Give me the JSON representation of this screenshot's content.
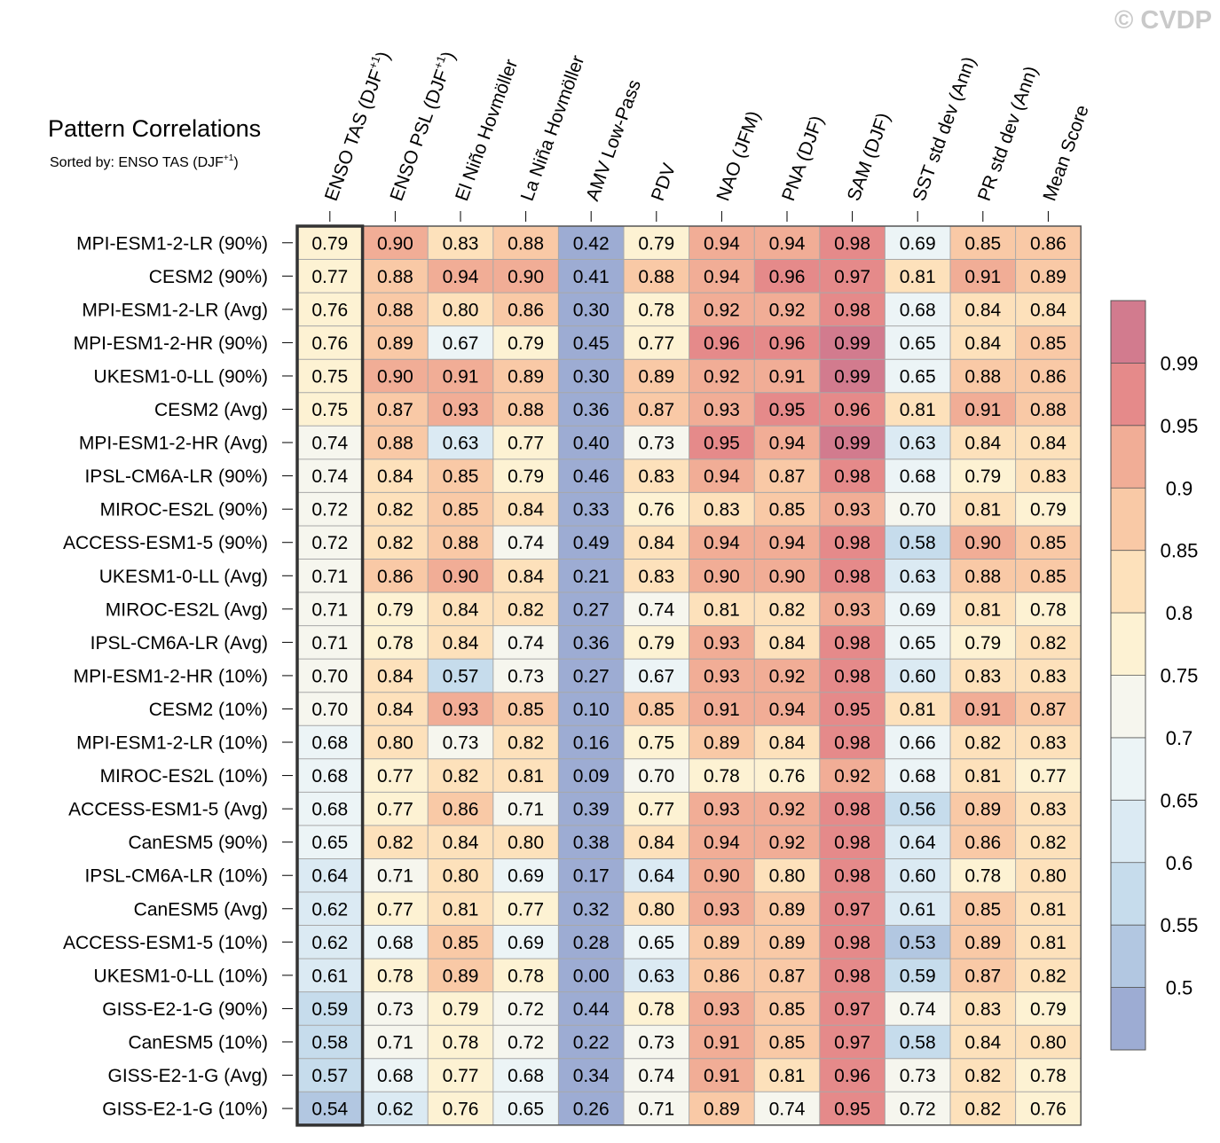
{
  "watermark": "© CVDP",
  "chart_data": {
    "type": "heatmap",
    "title": "Pattern Correlations",
    "subtitle": {
      "prefix": "Sorted by: ENSO TAS (DJF",
      "sup": "+1",
      "suffix": ")"
    },
    "columns": [
      {
        "label": "ENSO TAS (DJF",
        "sup": "+1",
        "suffix": ")"
      },
      {
        "label": "ENSO PSL (DJF",
        "sup": "+1",
        "suffix": ")"
      },
      {
        "label": "El Niño Hovmöller"
      },
      {
        "label": "La Niña Hovmöller"
      },
      {
        "label": "AMV Low-Pass"
      },
      {
        "label": "PDV"
      },
      {
        "label": "NAO (JFM)"
      },
      {
        "label": "PNA (DJF)"
      },
      {
        "label": "SAM (DJF)"
      },
      {
        "label": "SST std dev (Ann)"
      },
      {
        "label": "PR std dev (Ann)"
      },
      {
        "label": "Mean Score"
      }
    ],
    "sorted_by_column": 0,
    "rows": [
      {
        "label": "MPI-ESM1-2-LR (90%)",
        "values": [
          "0.79",
          "0.90",
          "0.83",
          "0.88",
          "0.42",
          "0.79",
          "0.94",
          "0.94",
          "0.98",
          "0.69",
          "0.85",
          "0.86"
        ]
      },
      {
        "label": "CESM2 (90%)",
        "values": [
          "0.77",
          "0.88",
          "0.94",
          "0.90",
          "0.41",
          "0.88",
          "0.94",
          "0.96",
          "0.97",
          "0.81",
          "0.91",
          "0.89"
        ]
      },
      {
        "label": "MPI-ESM1-2-LR (Avg)",
        "values": [
          "0.76",
          "0.88",
          "0.80",
          "0.86",
          "0.30",
          "0.78",
          "0.92",
          "0.92",
          "0.98",
          "0.68",
          "0.84",
          "0.84"
        ]
      },
      {
        "label": "MPI-ESM1-2-HR (90%)",
        "values": [
          "0.76",
          "0.89",
          "0.67",
          "0.79",
          "0.45",
          "0.77",
          "0.96",
          "0.96",
          "0.99",
          "0.65",
          "0.84",
          "0.85"
        ]
      },
      {
        "label": "UKESM1-0-LL (90%)",
        "values": [
          "0.75",
          "0.90",
          "0.91",
          "0.89",
          "0.30",
          "0.89",
          "0.92",
          "0.91",
          "0.99",
          "0.65",
          "0.88",
          "0.86"
        ]
      },
      {
        "label": "CESM2 (Avg)",
        "values": [
          "0.75",
          "0.87",
          "0.93",
          "0.88",
          "0.36",
          "0.87",
          "0.93",
          "0.95",
          "0.96",
          "0.81",
          "0.91",
          "0.88"
        ]
      },
      {
        "label": "MPI-ESM1-2-HR (Avg)",
        "values": [
          "0.74",
          "0.88",
          "0.63",
          "0.77",
          "0.40",
          "0.73",
          "0.95",
          "0.94",
          "0.99",
          "0.63",
          "0.84",
          "0.84"
        ]
      },
      {
        "label": "IPSL-CM6A-LR (90%)",
        "values": [
          "0.74",
          "0.84",
          "0.85",
          "0.79",
          "0.46",
          "0.83",
          "0.94",
          "0.87",
          "0.98",
          "0.68",
          "0.79",
          "0.83"
        ]
      },
      {
        "label": "MIROC-ES2L (90%)",
        "values": [
          "0.72",
          "0.82",
          "0.85",
          "0.84",
          "0.33",
          "0.76",
          "0.83",
          "0.85",
          "0.93",
          "0.70",
          "0.81",
          "0.79"
        ]
      },
      {
        "label": "ACCESS-ESM1-5 (90%)",
        "values": [
          "0.72",
          "0.82",
          "0.88",
          "0.74",
          "0.49",
          "0.84",
          "0.94",
          "0.94",
          "0.98",
          "0.58",
          "0.90",
          "0.85"
        ]
      },
      {
        "label": "UKESM1-0-LL (Avg)",
        "values": [
          "0.71",
          "0.86",
          "0.90",
          "0.84",
          "0.21",
          "0.83",
          "0.90",
          "0.90",
          "0.98",
          "0.63",
          "0.88",
          "0.85"
        ]
      },
      {
        "label": "MIROC-ES2L (Avg)",
        "values": [
          "0.71",
          "0.79",
          "0.84",
          "0.82",
          "0.27",
          "0.74",
          "0.81",
          "0.82",
          "0.93",
          "0.69",
          "0.81",
          "0.78"
        ]
      },
      {
        "label": "IPSL-CM6A-LR (Avg)",
        "values": [
          "0.71",
          "0.78",
          "0.84",
          "0.74",
          "0.36",
          "0.79",
          "0.93",
          "0.84",
          "0.98",
          "0.65",
          "0.79",
          "0.82"
        ]
      },
      {
        "label": "MPI-ESM1-2-HR (10%)",
        "values": [
          "0.70",
          "0.84",
          "0.57",
          "0.73",
          "0.27",
          "0.67",
          "0.93",
          "0.92",
          "0.98",
          "0.60",
          "0.83",
          "0.83"
        ]
      },
      {
        "label": "CESM2 (10%)",
        "values": [
          "0.70",
          "0.84",
          "0.93",
          "0.85",
          "0.10",
          "0.85",
          "0.91",
          "0.94",
          "0.95",
          "0.81",
          "0.91",
          "0.87"
        ]
      },
      {
        "label": "MPI-ESM1-2-LR (10%)",
        "values": [
          "0.68",
          "0.80",
          "0.73",
          "0.82",
          "0.16",
          "0.75",
          "0.89",
          "0.84",
          "0.98",
          "0.66",
          "0.82",
          "0.83"
        ]
      },
      {
        "label": "MIROC-ES2L (10%)",
        "values": [
          "0.68",
          "0.77",
          "0.82",
          "0.81",
          "0.09",
          "0.70",
          "0.78",
          "0.76",
          "0.92",
          "0.68",
          "0.81",
          "0.77"
        ]
      },
      {
        "label": "ACCESS-ESM1-5 (Avg)",
        "values": [
          "0.68",
          "0.77",
          "0.86",
          "0.71",
          "0.39",
          "0.77",
          "0.93",
          "0.92",
          "0.98",
          "0.56",
          "0.89",
          "0.83"
        ]
      },
      {
        "label": "CanESM5 (90%)",
        "values": [
          "0.65",
          "0.82",
          "0.84",
          "0.80",
          "0.38",
          "0.84",
          "0.94",
          "0.92",
          "0.98",
          "0.64",
          "0.86",
          "0.82"
        ]
      },
      {
        "label": "IPSL-CM6A-LR (10%)",
        "values": [
          "0.64",
          "0.71",
          "0.80",
          "0.69",
          "0.17",
          "0.64",
          "0.90",
          "0.80",
          "0.98",
          "0.60",
          "0.78",
          "0.80"
        ]
      },
      {
        "label": "CanESM5 (Avg)",
        "values": [
          "0.62",
          "0.77",
          "0.81",
          "0.77",
          "0.32",
          "0.80",
          "0.93",
          "0.89",
          "0.97",
          "0.61",
          "0.85",
          "0.81"
        ]
      },
      {
        "label": "ACCESS-ESM1-5 (10%)",
        "values": [
          "0.62",
          "0.68",
          "0.85",
          "0.69",
          "0.28",
          "0.65",
          "0.89",
          "0.89",
          "0.98",
          "0.53",
          "0.89",
          "0.81"
        ]
      },
      {
        "label": "UKESM1-0-LL (10%)",
        "values": [
          "0.61",
          "0.78",
          "0.89",
          "0.78",
          "0.00",
          "0.63",
          "0.86",
          "0.87",
          "0.98",
          "0.59",
          "0.87",
          "0.82"
        ]
      },
      {
        "label": "GISS-E2-1-G (90%)",
        "values": [
          "0.59",
          "0.73",
          "0.79",
          "0.72",
          "0.44",
          "0.78",
          "0.93",
          "0.85",
          "0.97",
          "0.74",
          "0.83",
          "0.79"
        ]
      },
      {
        "label": "CanESM5 (10%)",
        "values": [
          "0.58",
          "0.71",
          "0.78",
          "0.72",
          "0.22",
          "0.73",
          "0.91",
          "0.85",
          "0.97",
          "0.58",
          "0.84",
          "0.80"
        ]
      },
      {
        "label": "GISS-E2-1-G (Avg)",
        "values": [
          "0.57",
          "0.68",
          "0.77",
          "0.68",
          "0.34",
          "0.74",
          "0.91",
          "0.81",
          "0.96",
          "0.73",
          "0.82",
          "0.78"
        ]
      },
      {
        "label": "GISS-E2-1-G (10%)",
        "values": [
          "0.54",
          "0.62",
          "0.76",
          "0.65",
          "0.26",
          "0.71",
          "0.89",
          "0.74",
          "0.95",
          "0.72",
          "0.82",
          "0.76"
        ]
      }
    ],
    "colorbar": {
      "tick_labels": [
        "0.99",
        "0.95",
        "0.9",
        "0.85",
        "0.8",
        "0.75",
        "0.7",
        "0.65",
        "0.6",
        "0.55",
        "0.5"
      ],
      "levels": [
        0.5,
        0.55,
        0.6,
        0.65,
        0.7,
        0.75,
        0.8,
        0.85,
        0.9,
        0.95,
        0.99
      ],
      "colors": [
        "#9dacd3",
        "#b2c7e1",
        "#c6dcec",
        "#dbeaf3",
        "#ecf4f6",
        "#f6f6ee",
        "#fdf2d3",
        "#fde1bb",
        "#f9c9a6",
        "#f1ad96",
        "#e58a8a",
        "#d27b8e"
      ]
    }
  }
}
